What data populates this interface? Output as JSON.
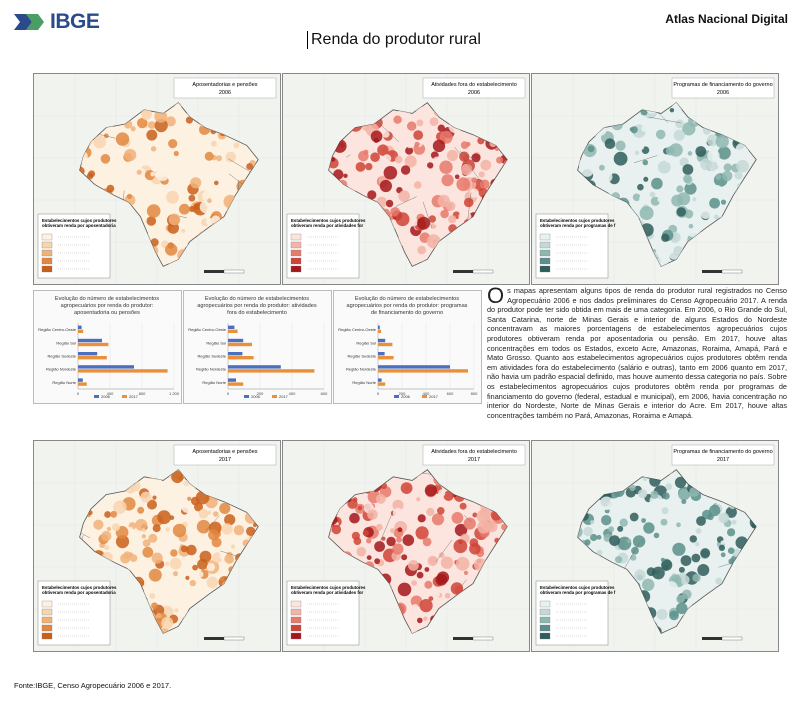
{
  "header": {
    "org": "IBGE",
    "atlas": "Atlas Nacional Digital",
    "title": "Renda do produtor rural"
  },
  "maps": [
    {
      "title": "Aposentadorias e pensões\n2006",
      "legend_title": "Estabelecimentos cujos produtores obtiveram renda por aposentadoria",
      "palette": [
        "#fdf1e2",
        "#f8d5b0",
        "#f1b27a",
        "#e28840",
        "#c9601a"
      ],
      "fill_level": 0.2
    },
    {
      "title": "Atividades fora do estabelecimento\n2006",
      "legend_title": "Estabelecimentos cujos produtores obtiveram renda por atividades fora do estabelecimento",
      "palette": [
        "#fce5df",
        "#f3b3a6",
        "#e67a6b",
        "#cf4437",
        "#a5171b"
      ],
      "fill_level": 0.45
    },
    {
      "title": "Programas de financiamento do governo\n2006",
      "legend_title": "Estabelecimentos cujos produtores obtiveram renda por programas de financiamento do governo",
      "palette": [
        "#e8f1f0",
        "#c4d9d6",
        "#8fb7b2",
        "#5a8f8a",
        "#2f5d5a"
      ],
      "fill_level": 0.3
    },
    {
      "title": "Aposentadorias e pensões\n2017",
      "legend_title": "Estabelecimentos cujos produtores obtiveram renda por aposentadoria",
      "palette": [
        "#fdf1e2",
        "#f8d5b0",
        "#f1b27a",
        "#e28840",
        "#c9601a"
      ],
      "fill_level": 0.6
    },
    {
      "title": "Atividades fora do estabelecimento\n2017",
      "legend_title": "Estabelecimentos cujos produtores obtiveram renda por atividades fora do estabelecimento",
      "palette": [
        "#fce5df",
        "#f3b3a6",
        "#e67a6b",
        "#cf4437",
        "#a5171b"
      ],
      "fill_level": 0.7
    },
    {
      "title": "Programas de financiamento do governo\n2017",
      "legend_title": "Estabelecimentos cujos produtores obtiveram renda por programas de financiamento do governo",
      "palette": [
        "#e8f1f0",
        "#c4d9d6",
        "#8fb7b2",
        "#5a8f8a",
        "#2f5d5a"
      ],
      "fill_level": 0.75
    }
  ],
  "chart_data": [
    {
      "type": "bar",
      "title": "Evolução do número de estabelecimentos agropecuários por renda do produtor: aposentadoria ou pensões",
      "categories": [
        "Região Centro-Oeste",
        "Região Sul",
        "Região Sudeste",
        "Região Nordeste",
        "Região Norte"
      ],
      "series": [
        {
          "name": "2006",
          "values": [
            45000,
            300000,
            240000,
            700000,
            60000
          ],
          "color": "#4c6fbf"
        },
        {
          "name": "2017",
          "values": [
            65000,
            380000,
            360000,
            1120000,
            110000
          ],
          "color": "#e8913a"
        }
      ],
      "xlim": [
        0,
        1200000
      ],
      "xticks": [
        "0",
        "400",
        "800",
        "1 200"
      ]
    },
    {
      "type": "bar",
      "title": "Evolução do número de estabelecimentos agropecuários por renda do produtor: atividades fora do estabelecimento",
      "categories": [
        "Região Centro-Oeste",
        "Região Sul",
        "Região Sudeste",
        "Região Nordeste",
        "Região Norte"
      ],
      "series": [
        {
          "name": "2006",
          "values": [
            40000,
            95000,
            90000,
            330000,
            50000
          ],
          "color": "#4c6fbf"
        },
        {
          "name": "2017",
          "values": [
            60000,
            150000,
            160000,
            540000,
            95000
          ],
          "color": "#e8913a"
        }
      ],
      "xlim": [
        0,
        600000
      ],
      "xticks": [
        "0",
        "200",
        "400",
        "600"
      ]
    },
    {
      "type": "bar",
      "title": "Evolução do número de estabelecimentos agropecuários por renda do produtor: programas de financiamento do governo",
      "categories": [
        "Região Centro-Oeste",
        "Região Sul",
        "Região Sudeste",
        "Região Nordeste",
        "Região Norte"
      ],
      "series": [
        {
          "name": "2006",
          "values": [
            15000,
            60000,
            55000,
            600000,
            30000
          ],
          "color": "#4c6fbf"
        },
        {
          "name": "2017",
          "values": [
            25000,
            120000,
            130000,
            750000,
            60000
          ],
          "color": "#e8913a"
        }
      ],
      "xlim": [
        0,
        800000
      ],
      "xticks": [
        "0",
        "200",
        "400",
        "600",
        "800"
      ]
    }
  ],
  "text": {
    "dropcap": "O",
    "body": "s mapas apresentam alguns tipos de renda do produtor rural registrados no Censo Agropecuário 2006 e nos dados preliminares do Censo Agropecuário 2017. A renda do produtor pode ter sido obtida em mais de uma categoria. Em 2006, o Rio Grande do Sul, Santa Catarina, norte de Minas Gerais e interior de alguns Estados do Nordeste concentravam as maiores porcentagens de estabelecimentos agropecuários cujos produtores obtiveram renda por aposentadoria ou pensão. Em 2017, houve altas concentrações em todos os Estados, exceto Acre, Amazonas, Roraima, Amapá, Pará e Mato Grosso. Quanto aos estabelecimentos agropecuários cujos produtores obtêm renda em atividades fora do estabelecimento (salário e outras), tanto em 2006 quanto em 2017, não havia um padrão espacial definido, mas houve aumento dessa categoria no país. Sobre os estabelecimentos agropecuários cujos produtores obtêm renda por programas de financiamento do governo (federal, estadual e municipal), em 2006, havia concentração no interior do Nordeste, Norte de Minas Gerais e interior do Acre. Em 2017, houve altas concentrações também no Pará, Amazonas, Roraima e Amapá."
  },
  "footer": {
    "source": "Fonte:IBGE, Censo Agropecuário 2006 e 2017."
  }
}
